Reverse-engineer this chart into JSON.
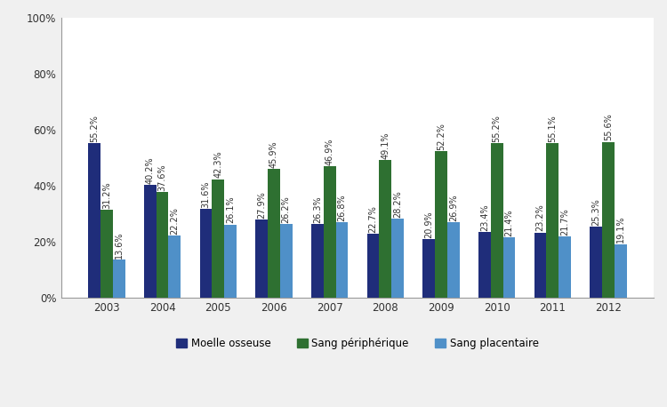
{
  "years": [
    "2003",
    "2004",
    "2005",
    "2006",
    "2007",
    "2008",
    "2009",
    "2010",
    "2011",
    "2012"
  ],
  "moelle_osseuse": [
    55.2,
    40.2,
    31.6,
    27.9,
    26.3,
    22.7,
    20.9,
    23.4,
    23.2,
    25.3
  ],
  "sang_peripherique": [
    31.2,
    37.6,
    42.3,
    45.9,
    46.9,
    49.1,
    52.2,
    55.2,
    55.1,
    55.6
  ],
  "sang_placentaire": [
    13.6,
    22.2,
    26.1,
    26.2,
    26.8,
    28.2,
    26.9,
    21.4,
    21.7,
    19.1
  ],
  "color_moelle": "#1F2D7A",
  "color_sang_peri": "#2E7031",
  "color_sang_plac": "#4F90C8",
  "bar_width": 0.22,
  "ylim": [
    0,
    100
  ],
  "yticks": [
    0,
    20,
    40,
    60,
    80,
    100
  ],
  "ytick_labels": [
    "0%",
    "20%",
    "40%",
    "60%",
    "80%",
    "100%"
  ],
  "legend_labels": [
    "Moelle osseuse",
    "Sang périphérique",
    "Sang placentaire"
  ],
  "label_fontsize": 7.0,
  "tick_fontsize": 8.5,
  "fig_bg": "#F0F0F0",
  "plot_bg": "#FFFFFF"
}
